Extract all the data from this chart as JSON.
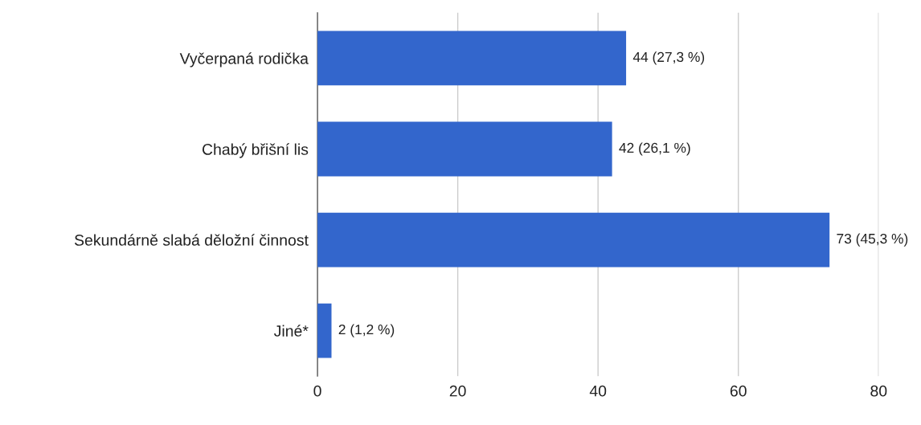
{
  "chart_data": {
    "type": "bar",
    "orientation": "horizontal",
    "categories": [
      "Vyčerpaná rodička",
      "Chabý břišní lis",
      "Sekundárně slabá děložní činnost",
      "Jiné*"
    ],
    "values": [
      44,
      42,
      73,
      2
    ],
    "value_labels": [
      "44 (27,3 %)",
      "42 (26,1 %)",
      "73 (45,3 %)",
      "2 (1,2 %)"
    ],
    "color": "#3366cc",
    "xlim": [
      0,
      80
    ],
    "xticks": [
      0,
      20,
      40,
      60,
      80
    ],
    "grid": "x",
    "legend": false
  }
}
